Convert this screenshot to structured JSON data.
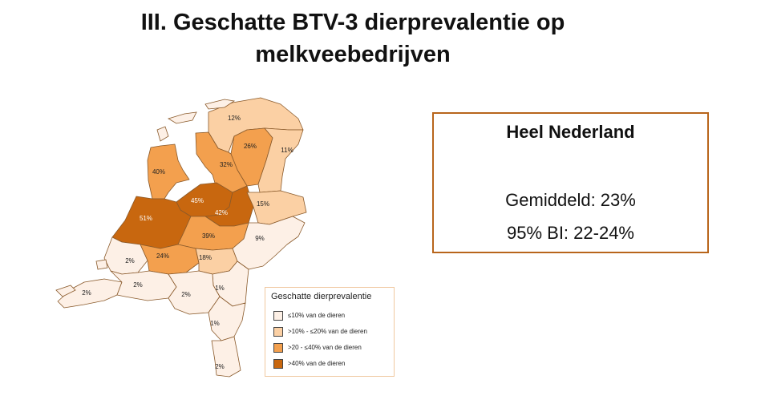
{
  "title": {
    "line1": "III. Geschatte BTV-3 dierprevalentie op",
    "line2": "melkveebedrijven"
  },
  "colors": {
    "class1": "#fdf0e6",
    "class2": "#fbd0a4",
    "class3": "#f3a04e",
    "class4": "#c8670f",
    "border": "#8a5a2b"
  },
  "regions": [
    {
      "label": "12%",
      "class": "class2"
    },
    {
      "label": "26%",
      "class": "class3"
    },
    {
      "label": "11%",
      "class": "class2"
    },
    {
      "label": "40%",
      "class": "class3"
    },
    {
      "label": "32%",
      "class": "class3"
    },
    {
      "label": "45%",
      "class": "class4"
    },
    {
      "label": "42%",
      "class": "class4"
    },
    {
      "label": "15%",
      "class": "class2"
    },
    {
      "label": "51%",
      "class": "class4"
    },
    {
      "label": "39%",
      "class": "class3"
    },
    {
      "label": "9%",
      "class": "class1"
    },
    {
      "label": "2%",
      "class": "class1"
    },
    {
      "label": "24%",
      "class": "class3"
    },
    {
      "label": "18%",
      "class": "class2"
    },
    {
      "label": "2%",
      "class": "class1"
    },
    {
      "label": "2%",
      "class": "class1"
    },
    {
      "label": "1%",
      "class": "class1"
    },
    {
      "label": "2%",
      "class": "class1"
    },
    {
      "label": "1%",
      "class": "class1"
    },
    {
      "label": "2%",
      "class": "class1"
    }
  ],
  "legend": {
    "title": "Geschatte dierprevalentie",
    "items": [
      {
        "label": "≤10% van de dieren",
        "color": "#fdf0e6"
      },
      {
        "label": ">10% - ≤20% van de dieren",
        "color": "#fbd0a4"
      },
      {
        "label": ">20 - ≤40% van de dieren",
        "color": "#f3a04e"
      },
      {
        "label": ">40% van de dieren",
        "color": "#c8670f"
      }
    ]
  },
  "summary": {
    "title": "Heel Nederland",
    "mean": "Gemiddeld:  23%",
    "ci": "95% BI: 22-24%"
  }
}
